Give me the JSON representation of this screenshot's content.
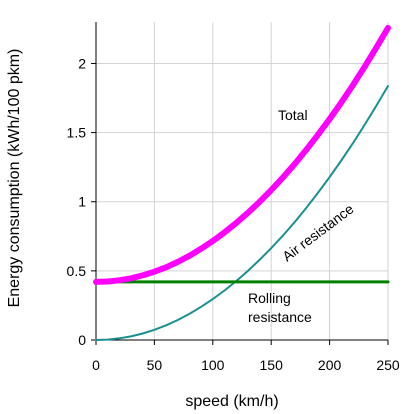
{
  "chart_data": {
    "type": "line",
    "xlabel": "speed (km/h)",
    "ylabel": "Energy consumption (kWh/100 pkm)",
    "xlim": [
      0,
      250
    ],
    "ylim": [
      0,
      2.3
    ],
    "xticks": [
      0,
      50,
      100,
      150,
      200,
      250
    ],
    "yticks": [
      0,
      0.5,
      1,
      1.5,
      2
    ],
    "grid": true,
    "series": [
      {
        "name": "Total",
        "color": "#ff00ff",
        "x": [
          0,
          10,
          20,
          30,
          40,
          50,
          60,
          70,
          80,
          90,
          100,
          110,
          120,
          130,
          140,
          150,
          160,
          170,
          180,
          190,
          200,
          210,
          220,
          230,
          240,
          250
        ],
        "y": [
          0.42,
          0.423,
          0.432,
          0.446,
          0.467,
          0.494,
          0.526,
          0.565,
          0.609,
          0.66,
          0.716,
          0.778,
          0.846,
          0.919,
          0.999,
          1.084,
          1.175,
          1.272,
          1.375,
          1.484,
          1.598,
          1.718,
          1.844,
          1.976,
          2.114,
          2.257
        ]
      },
      {
        "name": "Air resistance",
        "color": "#1a9090",
        "x": [
          0,
          10,
          20,
          30,
          40,
          50,
          60,
          70,
          80,
          90,
          100,
          110,
          120,
          130,
          140,
          150,
          160,
          170,
          180,
          190,
          200,
          210,
          220,
          230,
          240,
          250
        ],
        "y": [
          0,
          0.003,
          0.012,
          0.026,
          0.047,
          0.074,
          0.106,
          0.145,
          0.189,
          0.24,
          0.296,
          0.358,
          0.426,
          0.499,
          0.579,
          0.664,
          0.755,
          0.852,
          0.955,
          1.064,
          1.178,
          1.298,
          1.424,
          1.556,
          1.694,
          1.837
        ]
      },
      {
        "name": "Rolling resistance",
        "color": "#008000",
        "x": [
          0,
          250
        ],
        "y": [
          0.42,
          0.42
        ]
      }
    ],
    "annotations": {
      "total": "Total",
      "air": "Air resistance",
      "rolling_line1": "Rolling",
      "rolling_line2": "resistance"
    }
  }
}
